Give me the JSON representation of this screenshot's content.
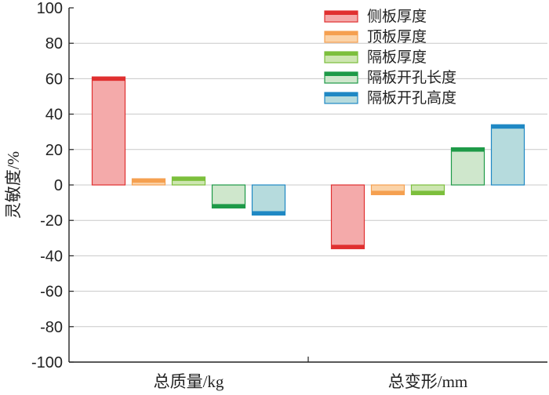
{
  "chart_data": {
    "type": "bar",
    "title": "",
    "xlabel": "",
    "ylabel": "灵敏度/%",
    "ylim": [
      -100,
      100
    ],
    "yticks": [
      100,
      80,
      60,
      40,
      20,
      0,
      -20,
      -40,
      -60,
      -80,
      -100
    ],
    "ytick_labels": [
      "100",
      "80",
      "60",
      "40",
      "20",
      "0",
      "-20",
      "-40",
      "-60",
      "-80",
      "-100"
    ],
    "grid": true,
    "legend_position": "top-right",
    "categories": [
      "总质量/kg",
      "总变形/mm"
    ],
    "series": [
      {
        "name": "侧板厚度",
        "values": [
          61,
          -36
        ],
        "color": "#e03030",
        "fill": "#f4aaaa"
      },
      {
        "name": "顶板厚度",
        "values": [
          3.5,
          -5.5
        ],
        "color": "#f5a050",
        "fill": "#fbd3a8"
      },
      {
        "name": "隔板厚度",
        "values": [
          4.5,
          -5.5
        ],
        "color": "#7cbf3c",
        "fill": "#cde6b0"
      },
      {
        "name": "隔板开孔长度",
        "values": [
          -13,
          21
        ],
        "color": "#1e9a48",
        "fill": "#cfe7cc"
      },
      {
        "name": "隔板开孔高度",
        "values": [
          -17,
          34
        ],
        "color": "#1f88c4",
        "fill": "#b6dbdd"
      }
    ]
  }
}
